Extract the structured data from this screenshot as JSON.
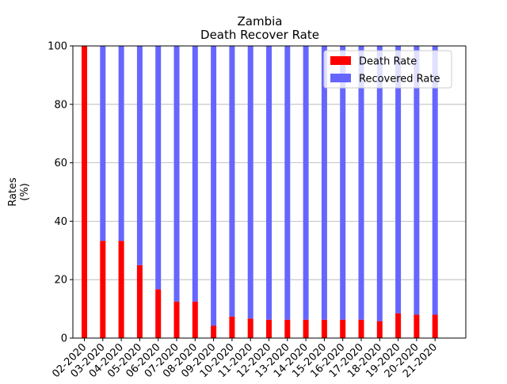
{
  "chart_data": {
    "type": "bar",
    "stacked": true,
    "title": "Zambia",
    "subtitle": "Death Recover Rate",
    "xlabel": "",
    "ylabel": "Rates\n(%)",
    "ylim": [
      0,
      100
    ],
    "yticks": [
      0,
      20,
      40,
      60,
      80,
      100
    ],
    "grid": "y",
    "legend_position": "top-right",
    "categories": [
      "02-2020",
      "03-2020",
      "04-2020",
      "05-2020",
      "06-2020",
      "07-2020",
      "08-2020",
      "09-2020",
      "10-2020",
      "11-2020",
      "12-2020",
      "13-2020",
      "14-2020",
      "15-2020",
      "16-2020",
      "17-2020",
      "18-2020",
      "19-2020",
      "20-2020",
      "21-2020"
    ],
    "series": [
      {
        "name": "Death Rate",
        "color": "#ff0000",
        "values": [
          100,
          33.3,
          33.3,
          25,
          16.7,
          12.5,
          12.5,
          4.2,
          7.4,
          6.7,
          6.3,
          6.3,
          6.3,
          6.3,
          6.3,
          6.3,
          5.8,
          8.5,
          8.0,
          8.0
        ]
      },
      {
        "name": "Recovered Rate",
        "color": "#6666ff",
        "values": [
          0,
          66.7,
          66.7,
          75,
          83.3,
          87.5,
          87.5,
          95.8,
          92.6,
          93.3,
          93.7,
          93.7,
          93.7,
          93.7,
          93.7,
          93.7,
          94.2,
          91.5,
          92.0,
          92.0
        ]
      }
    ]
  }
}
